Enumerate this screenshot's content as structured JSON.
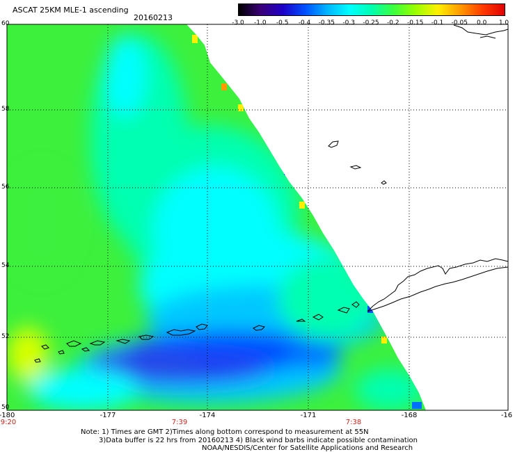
{
  "header": {
    "product": "ASCAT 25KM MLE-1 ascending",
    "date": "20160213"
  },
  "colorbar": {
    "labels": [
      "-3.0",
      "-1.0",
      "-0.5",
      "-0.4",
      "-0.35",
      "-0.3",
      "-0.25",
      "-0.2",
      "-0.15",
      "-0.1",
      "-0.05",
      "0.0",
      "1.0"
    ],
    "colors": [
      "#000000",
      "#3b0078",
      "#1d00c8",
      "#0050ff",
      "#00b4ff",
      "#00ffff",
      "#00ffb0",
      "#3cff3c",
      "#9cff00",
      "#fff000",
      "#ff9a00",
      "#ff3c00",
      "#e00000"
    ]
  },
  "axes": {
    "lat_labels": [
      "60",
      "58",
      "56",
      "54",
      "52",
      "50"
    ],
    "lon_labels": [
      "-180",
      "-177",
      "-174",
      "-171",
      "-168",
      "-16"
    ],
    "time_labels": [
      "9:20",
      "7:39",
      "7:38"
    ]
  },
  "notes": {
    "line1": "Note: 1) Times are GMT 2)Times along bottom correspond to measurement at 55N",
    "line2": "3)Data buffer is 22 hrs from 20160213 4) Black wind barbs indicate possible contamination",
    "line3": "NOAA/NESDIS/Center for Satellite Applications and Research"
  },
  "palette": {
    "green": "#3cf03c",
    "yellow_green": "#9cff00",
    "cyan": "#00ffff",
    "aqua": "#00ffb0",
    "light_blue": "#00c8ff",
    "blue": "#0050ff",
    "deep_blue": "#2040f0"
  }
}
